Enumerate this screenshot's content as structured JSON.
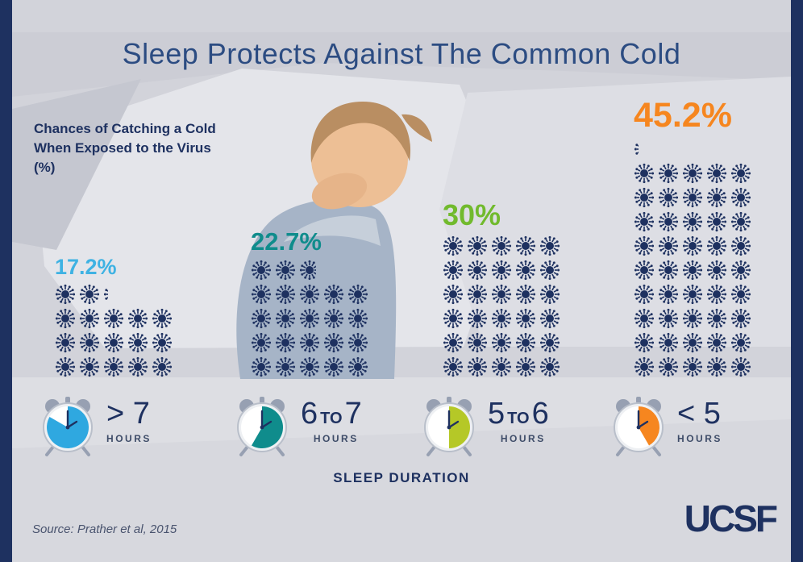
{
  "title": "Sleep Protects Against The Common Cold",
  "axis_note": "Chances of Catching a Cold When Exposed to the Virus (%)",
  "sleep_duration_label": "SLEEP DURATION",
  "source": "Source: Prather et al, 2015",
  "logo": "UCSF",
  "frame": {
    "side_bar_color": "#1e3160",
    "background": "#d2d3da"
  },
  "chart_data": {
    "type": "bar",
    "style": "pictograph-icon-array",
    "title": "Sleep Protects Against The Common Cold",
    "ylabel": "Chances of Catching a Cold When Exposed to the Virus (%)",
    "xlabel": "SLEEP DURATION",
    "categories": [
      "> 7 hours",
      "6 to 7 hours",
      "5 to 6 hours",
      "< 5 hours"
    ],
    "values": [
      17.2,
      22.7,
      30,
      45.2
    ],
    "value_labels": [
      "17.2%",
      "22.7%",
      "30%",
      "45.2%"
    ],
    "value_colors": [
      "#3eb2e3",
      "#0f8c8c",
      "#71ba2d",
      "#f6861f"
    ],
    "unit_per_icon": 1,
    "icons_per_row": 5,
    "icon": "virus-icon",
    "icon_color": "#1e3160",
    "source": "Prather et al, 2015"
  },
  "clocks": [
    {
      "p1": "> 7",
      "mid": "",
      "p2": "",
      "hours": "HOURS",
      "color": "#2fa8e0",
      "fill_deg": 300
    },
    {
      "p1": "6",
      "mid": "TO",
      "p2": "7",
      "hours": "HOURS",
      "color": "#0f8c8c",
      "fill_deg": 210
    },
    {
      "p1": "5",
      "mid": "TO",
      "p2": "6",
      "hours": "HOURS",
      "color": "#b5c827",
      "fill_deg": 180
    },
    {
      "p1": "< 5",
      "mid": "",
      "p2": "",
      "hours": "HOURS",
      "color": "#f6861f",
      "fill_deg": 150
    }
  ]
}
